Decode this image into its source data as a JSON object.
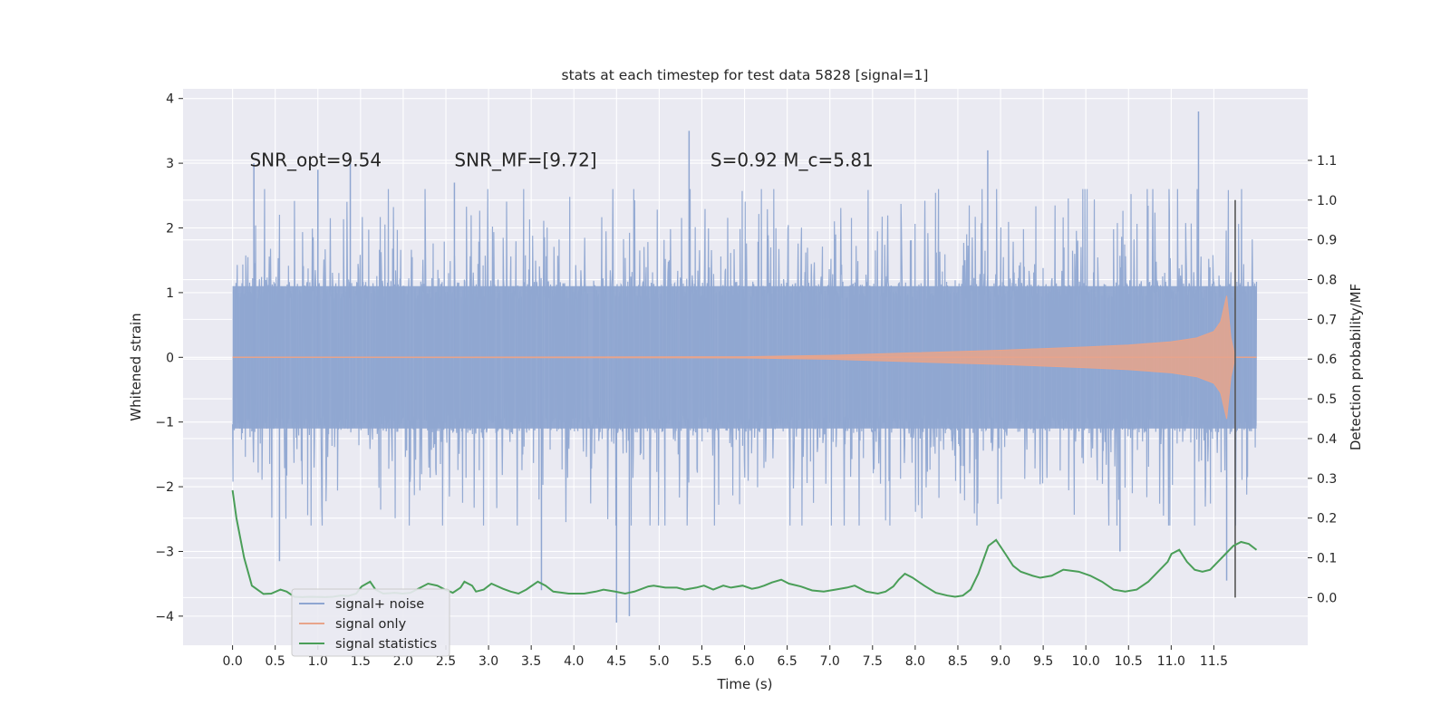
{
  "chart_data": {
    "type": "line",
    "title": "stats at each timestep for test data 5828 [signal=1]",
    "xlabel": "Time (s)",
    "ylabel": "Whitened strain",
    "y2label": "Detection probability/MF",
    "xlim": [
      -0.58,
      12.6
    ],
    "ylim": [
      -4.45,
      4.15
    ],
    "y2lim": [
      -0.12,
      1.28
    ],
    "grid": true,
    "legend_position": "lower-left",
    "xticks": [
      0.0,
      0.5,
      1.0,
      1.5,
      2.0,
      2.5,
      3.0,
      3.5,
      4.0,
      4.5,
      5.0,
      5.5,
      6.0,
      6.5,
      7.0,
      7.5,
      8.0,
      8.5,
      9.0,
      9.5,
      10.0,
      10.5,
      11.0,
      11.5
    ],
    "xtick_labels": [
      "0.0",
      "0.5",
      "1.0",
      "1.5",
      "2.0",
      "2.5",
      "3.0",
      "3.5",
      "4.0",
      "4.5",
      "5.0",
      "5.5",
      "6.0",
      "6.5",
      "7.0",
      "7.5",
      "8.0",
      "8.5",
      "9.0",
      "9.5",
      "10.0",
      "10.5",
      "11.0",
      "11.5"
    ],
    "yticks": [
      -4,
      -3,
      -2,
      -1,
      0,
      1,
      2,
      3,
      4
    ],
    "ytick_labels": [
      "−4",
      "−3",
      "−2",
      "−1",
      "0",
      "1",
      "2",
      "3",
      "4"
    ],
    "y2ticks": [
      0.0,
      0.1,
      0.2,
      0.3,
      0.4,
      0.5,
      0.6,
      0.7,
      0.8,
      0.9,
      1.0,
      1.1
    ],
    "y2tick_labels": [
      "0.0",
      "0.1",
      "0.2",
      "0.3",
      "0.4",
      "0.5",
      "0.6",
      "0.7",
      "0.8",
      "0.9",
      "1.0",
      "1.1"
    ],
    "annotations": [
      {
        "text": "SNR_opt=9.54",
        "x": 0.2,
        "y": 2.95
      },
      {
        "text": "SNR_MF=[9.72]",
        "x": 2.6,
        "y": 2.95
      },
      {
        "text": "S=0.92   M_c=5.81",
        "x": 5.6,
        "y": 2.95
      }
    ],
    "vline": {
      "x": 11.75,
      "y2_range": [
        0.0,
        1.0
      ],
      "color": "#555555"
    },
    "series": [
      {
        "name": "signal+ noise",
        "color": "#8fa6d1",
        "kind": "noise",
        "t_range": [
          0.0,
          12.0
        ],
        "typical_amplitude": 1.1,
        "extremes": [
          [
            0.25,
            3.0
          ],
          [
            1.0,
            2.9
          ],
          [
            1.38,
            3.0
          ],
          [
            2.6,
            2.7
          ],
          [
            4.5,
            -4.1
          ],
          [
            4.65,
            -4.0
          ],
          [
            5.35,
            3.5
          ],
          [
            3.62,
            -3.6
          ],
          [
            8.85,
            3.2
          ],
          [
            11.32,
            3.8
          ],
          [
            11.65,
            -3.45
          ],
          [
            10.4,
            -3.0
          ],
          [
            0.55,
            -3.15
          ]
        ]
      },
      {
        "name": "signal only",
        "color": "#e8a48b",
        "kind": "chirp",
        "t_range": [
          0.0,
          12.0
        ],
        "merger_time": 11.65,
        "points": [
          [
            0.0,
            0.0
          ],
          [
            6.0,
            0.01
          ],
          [
            7.0,
            0.03
          ],
          [
            8.0,
            0.07
          ],
          [
            9.0,
            0.11
          ],
          [
            10.0,
            0.16
          ],
          [
            10.5,
            0.19
          ],
          [
            11.0,
            0.24
          ],
          [
            11.3,
            0.3
          ],
          [
            11.5,
            0.4
          ],
          [
            11.58,
            0.55
          ],
          [
            11.65,
            0.95
          ],
          [
            11.7,
            0.3
          ],
          [
            11.75,
            0.0
          ],
          [
            12.0,
            0.0
          ]
        ]
      },
      {
        "name": "signal statistics",
        "color": "#4a9e58",
        "kind": "line",
        "axis": "right",
        "points": [
          [
            0.0,
            0.27
          ],
          [
            0.05,
            0.2
          ],
          [
            0.15,
            0.1
          ],
          [
            0.25,
            0.03
          ],
          [
            0.4,
            0.009
          ],
          [
            0.5,
            0.01
          ],
          [
            0.62,
            0.02
          ],
          [
            0.7,
            0.015
          ],
          [
            0.8,
            0.002
          ],
          [
            0.9,
            0.001
          ],
          [
            1.0,
            0.002
          ],
          [
            1.2,
            0.001
          ],
          [
            1.3,
            0.002
          ],
          [
            1.4,
            0.005
          ],
          [
            1.5,
            0.004
          ],
          [
            1.6,
            0.01
          ],
          [
            1.67,
            0.028
          ],
          [
            1.78,
            0.04
          ],
          [
            1.85,
            0.02
          ],
          [
            1.95,
            0.01
          ],
          [
            2.1,
            0.012
          ],
          [
            2.2,
            0.01
          ],
          [
            2.3,
            0.012
          ],
          [
            2.4,
            0.022
          ],
          [
            2.53,
            0.035
          ],
          [
            2.65,
            0.03
          ],
          [
            2.75,
            0.02
          ],
          [
            2.85,
            0.012
          ],
          [
            2.95,
            0.025
          ],
          [
            3.0,
            0.04
          ],
          [
            3.1,
            0.03
          ],
          [
            3.15,
            0.015
          ],
          [
            3.25,
            0.02
          ],
          [
            3.35,
            0.035
          ],
          [
            3.5,
            0.022
          ],
          [
            3.6,
            0.015
          ],
          [
            3.7,
            0.01
          ],
          [
            3.8,
            0.02
          ],
          [
            3.95,
            0.04
          ],
          [
            4.05,
            0.03
          ],
          [
            4.15,
            0.015
          ],
          [
            4.35,
            0.01
          ],
          [
            4.55,
            0.01
          ],
          [
            4.7,
            0.015
          ],
          [
            4.8,
            0.02
          ],
          [
            4.95,
            0.015
          ],
          [
            5.08,
            0.01
          ],
          [
            5.2,
            0.015
          ],
          [
            5.38,
            0.028
          ],
          [
            5.45,
            0.03
          ],
          [
            5.6,
            0.025
          ],
          [
            5.75,
            0.025
          ],
          [
            5.85,
            0.02
          ],
          [
            6.0,
            0.025
          ],
          [
            6.1,
            0.03
          ],
          [
            6.22,
            0.02
          ],
          [
            6.35,
            0.03
          ],
          [
            6.45,
            0.025
          ],
          [
            6.6,
            0.03
          ],
          [
            6.72,
            0.022
          ],
          [
            6.8,
            0.025
          ],
          [
            6.88,
            0.03
          ],
          [
            6.98,
            0.038
          ],
          [
            7.1,
            0.045
          ],
          [
            7.2,
            0.035
          ],
          [
            7.35,
            0.028
          ],
          [
            7.5,
            0.018
          ],
          [
            7.65,
            0.015
          ],
          [
            7.8,
            0.02
          ],
          [
            7.95,
            0.025
          ],
          [
            8.05,
            0.03
          ],
          [
            8.2,
            0.015
          ],
          [
            8.35,
            0.01
          ],
          [
            8.45,
            0.015
          ],
          [
            8.55,
            0.028
          ],
          [
            8.62,
            0.045
          ],
          [
            8.7,
            0.06
          ],
          [
            8.8,
            0.05
          ],
          [
            8.95,
            0.03
          ],
          [
            9.1,
            0.012
          ],
          [
            9.25,
            0.005
          ],
          [
            9.35,
            0.002
          ],
          [
            9.45,
            0.005
          ],
          [
            9.55,
            0.02
          ],
          [
            9.65,
            0.06
          ],
          [
            9.78,
            0.13
          ],
          [
            9.88,
            0.145
          ],
          [
            10.0,
            0.11
          ],
          [
            10.1,
            0.08
          ],
          [
            10.2,
            0.065
          ],
          [
            10.35,
            0.055
          ],
          [
            10.45,
            0.05
          ],
          [
            10.6,
            0.055
          ],
          [
            10.75,
            0.07
          ],
          [
            10.95,
            0.065
          ],
          [
            11.1,
            0.055
          ],
          [
            11.25,
            0.04
          ],
          [
            11.4,
            0.02
          ],
          [
            11.55,
            0.015
          ],
          [
            11.7,
            0.02
          ],
          [
            11.85,
            0.04
          ],
          [
            11.95,
            0.06
          ],
          [
            12.1,
            0.09
          ],
          [
            12.15,
            0.11
          ],
          [
            12.25,
            0.12
          ],
          [
            12.35,
            0.09
          ],
          [
            12.45,
            0.07
          ],
          [
            12.55,
            0.065
          ],
          [
            12.65,
            0.07
          ],
          [
            12.75,
            0.09
          ],
          [
            12.85,
            0.11
          ],
          [
            12.95,
            0.13
          ],
          [
            13.05,
            0.14
          ],
          [
            13.15,
            0.135
          ],
          [
            13.25,
            0.12
          ]
        ]
      }
    ]
  }
}
